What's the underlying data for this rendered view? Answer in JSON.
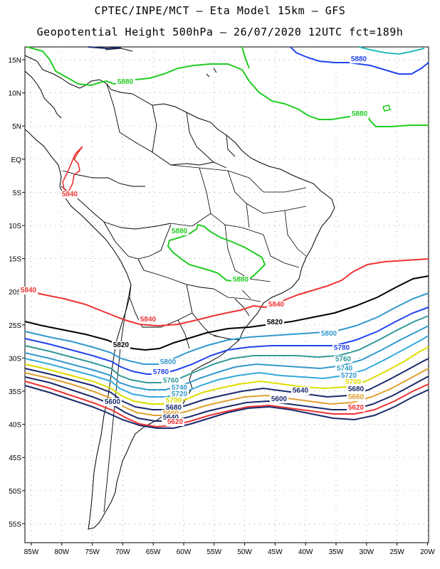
{
  "title_line1": "CPTEC/INPE/MCT – Eta Model 15km – GFS",
  "title_line2": "Geopotential Height 500hPa – 26/07/2020 12UTC fct=189h",
  "lat_labels": [
    "15N",
    "10N",
    "5N",
    "EQ",
    "5S",
    "10S",
    "15S",
    "20S",
    "25S",
    "30S",
    "35S",
    "40S",
    "45S",
    "50S",
    "55S"
  ],
  "lon_labels": [
    "85W",
    "80W",
    "75W",
    "70W",
    "65W",
    "60W",
    "55W",
    "50W",
    "45W",
    "40W",
    "35W",
    "30W",
    "25W",
    "20W"
  ],
  "contour_labels": [
    {
      "id": "g5880a",
      "text": "5880",
      "color": "#22cc22"
    },
    {
      "id": "g5880b",
      "text": "5880",
      "color": "#22cc22"
    },
    {
      "id": "g5880c",
      "text": "5880",
      "color": "#22cc22"
    },
    {
      "id": "g5880d",
      "text": "5880",
      "color": "#22cc22"
    },
    {
      "id": "b5880",
      "text": "5880",
      "color": "#2244ee"
    },
    {
      "id": "r5840a",
      "text": "5840",
      "color": "#ee3333"
    },
    {
      "id": "r5840b",
      "text": "5840",
      "color": "#ee3333"
    },
    {
      "id": "r5840c",
      "text": "5840",
      "color": "#ee3333"
    },
    {
      "id": "r5840d",
      "text": "5840",
      "color": "#ee3333"
    },
    {
      "id": "k5820a",
      "text": "5820",
      "color": "#000000"
    },
    {
      "id": "k5820b",
      "text": "5820",
      "color": "#000000"
    },
    {
      "id": "s5800a",
      "text": "5800",
      "color": "#3399cc"
    },
    {
      "id": "s5800b",
      "text": "5800",
      "color": "#3399cc"
    },
    {
      "id": "b5780a",
      "text": "5780",
      "color": "#2244ee"
    },
    {
      "id": "b5780b",
      "text": "5780",
      "color": "#2244ee"
    },
    {
      "id": "t5760a",
      "text": "5760",
      "color": "#339999"
    },
    {
      "id": "t5760b",
      "text": "5760",
      "color": "#339999"
    },
    {
      "id": "t5740a",
      "text": "5740",
      "color": "#3399cc"
    },
    {
      "id": "t5740b",
      "text": "5740",
      "color": "#3399cc"
    },
    {
      "id": "c5720a",
      "text": "5720",
      "color": "#3399cc"
    },
    {
      "id": "c5720b",
      "text": "5720",
      "color": "#3399cc"
    },
    {
      "id": "y5700a",
      "text": "5700",
      "color": "#dddd00"
    },
    {
      "id": "y5700b",
      "text": "5700",
      "color": "#dddd00"
    },
    {
      "id": "n5680a",
      "text": "5680",
      "color": "#1a2a6c"
    },
    {
      "id": "n5680b",
      "text": "5680",
      "color": "#1a2a6c"
    },
    {
      "id": "o5660a",
      "text": "5660",
      "color": "#e0a030"
    },
    {
      "id": "o5660b",
      "text": "5660",
      "color": "#e0a030"
    },
    {
      "id": "n5640a",
      "text": "5640",
      "color": "#1a2a6c"
    },
    {
      "id": "n5640b",
      "text": "5640",
      "color": "#1a2a6c"
    },
    {
      "id": "r5620a",
      "text": "5620",
      "color": "#ee3333"
    },
    {
      "id": "r5620b",
      "text": "5620",
      "color": "#ee3333"
    },
    {
      "id": "n5600a",
      "text": "5600",
      "color": "#1a2a6c"
    },
    {
      "id": "n5600b",
      "text": "5600",
      "color": "#1a2a6c"
    }
  ]
}
